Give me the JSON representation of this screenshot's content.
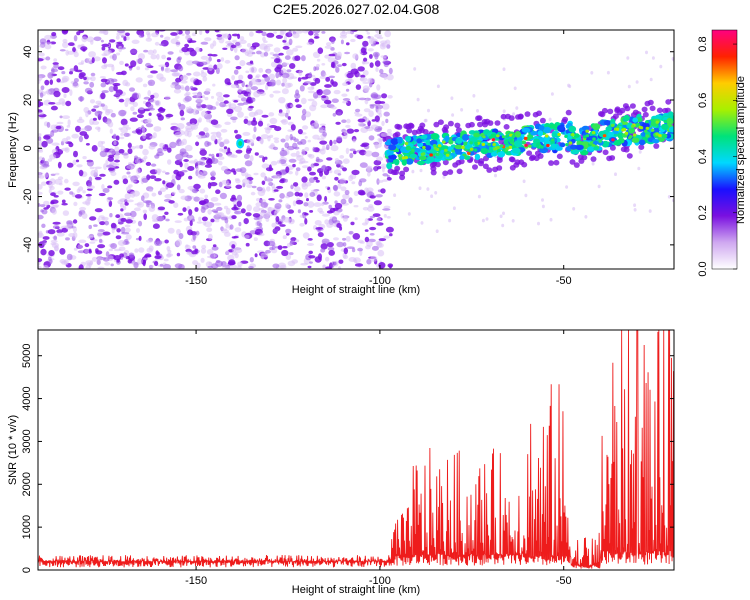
{
  "title": "C2E5.2026.027.02.04.G08",
  "chart_data": [
    {
      "type": "heatmap",
      "xlabel": "Height of straight line (km)",
      "ylabel": "Frequency (Hz)",
      "xlim": [
        -193,
        -20
      ],
      "ylim": [
        -50,
        49
      ],
      "x_ticks": [
        -150,
        -100,
        -50
      ],
      "y_ticks": [
        -40,
        -20,
        0,
        20,
        40
      ],
      "colorbar": {
        "label": "Normalized spectral amplitude",
        "range": [
          0.0,
          0.85
        ],
        "ticks": [
          0.0,
          0.2,
          0.4,
          0.6,
          0.8
        ],
        "colormap": [
          "#ffffff",
          "#cfa8f0",
          "#7a10e0",
          "#1a10ff",
          "#00d8ff",
          "#00e27a",
          "#a8f000",
          "#ffcc00",
          "#ff2200",
          "#ff0080"
        ]
      },
      "features": {
        "noise_region_x": [
          -193,
          -97
        ],
        "signal_band_start_x": -98,
        "signal_band_center_hz": [
          -6,
          5
        ],
        "peak_amplitude": 0.8,
        "noise_amplitude": 0.1
      }
    },
    {
      "type": "line",
      "xlabel": "Height of straight line (km)",
      "ylabel": "SNR (10 * v/v)",
      "xlim": [
        -193,
        -20
      ],
      "ylim": [
        0,
        5600
      ],
      "x_ticks": [
        -150,
        -100,
        -50
      ],
      "y_ticks": [
        0,
        1000,
        2000,
        3000,
        4000,
        5000
      ],
      "series": [
        {
          "name": "SNR",
          "color": "#ee1c1c",
          "segments": [
            {
              "x": [
                -193,
                -97
              ],
              "baseline": 200,
              "spread": 150
            },
            {
              "x": [
                -97,
                -92
              ],
              "baseline": 300,
              "spread": 1200
            },
            {
              "x": [
                -92,
                -60
              ],
              "baseline": 350,
              "spread": 2500
            },
            {
              "x": [
                -60,
                -48
              ],
              "baseline": 300,
              "spread": 4200
            },
            {
              "x": [
                -48,
                -40
              ],
              "baseline": 100,
              "spread": 800
            },
            {
              "x": [
                -40,
                -20
              ],
              "baseline": 400,
              "spread": 5600
            }
          ],
          "peak": {
            "x": -30,
            "y": 5600
          }
        }
      ]
    }
  ]
}
